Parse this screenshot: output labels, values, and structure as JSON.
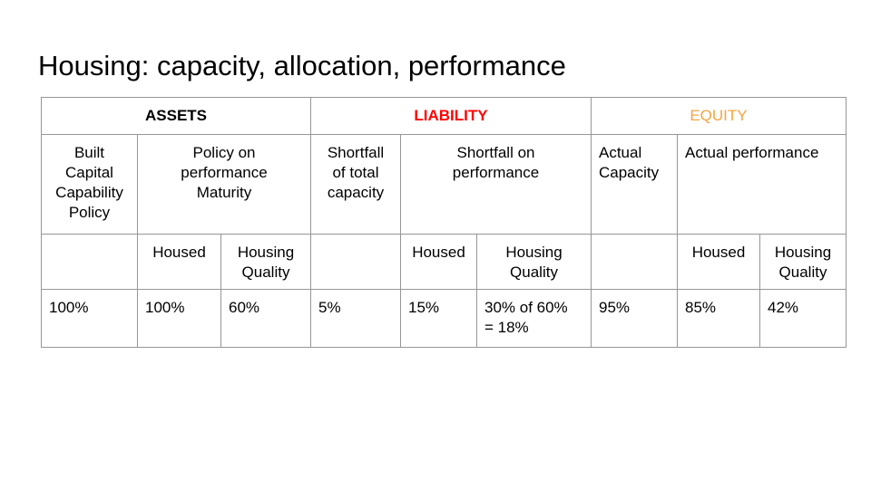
{
  "title": "Housing: capacity, allocation, performance",
  "colors": {
    "assets": "#000000",
    "liability": "#ff0000",
    "equity": "#f6a542",
    "border": "#969696",
    "text": "#000000",
    "background": "#ffffff"
  },
  "table": {
    "row1": [
      {
        "label": "ASSETS"
      },
      {
        "label": "LIABILITY"
      },
      {
        "label": "EQUITY"
      }
    ],
    "row2": [
      "Built\nCapital\nCapability\nPolicy",
      "Policy on\nperformance\nMaturity",
      "Shortfall\nof total\ncapacity",
      "Shortfall on\nperformance",
      "Actual\nCapacity",
      "Actual performance"
    ],
    "row3": [
      "",
      "Housed",
      "Housing\nQuality",
      "",
      "Housed",
      "Housing\nQuality",
      "",
      "Housed",
      "Housing\nQuality"
    ],
    "row4": [
      "100%",
      "100%",
      "60%",
      "5%",
      "15%",
      "30% of 60%\n= 18%",
      "95%",
      "85%",
      "42%"
    ]
  }
}
